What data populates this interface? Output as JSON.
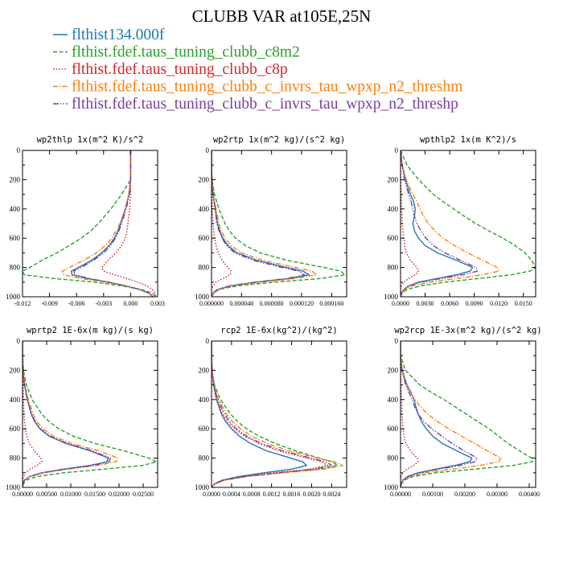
{
  "figure": {
    "title": "CLUBB VAR at105E,25N"
  },
  "legend": [
    {
      "name": "flthist134.000f",
      "color": "#1f77b4",
      "dash": "solid"
    },
    {
      "name": "flthist.fdef.taus_tuning_clubb_c8m2",
      "color": "#2ca02c",
      "dash": "dash"
    },
    {
      "name": "flthist.fdef.taus_tuning_clubb_c8p",
      "color": "#d62728",
      "dash": "dot"
    },
    {
      "name": "flthist.fdef.taus_tuning_clubb_c_invrs_tau_wpxp_n2_threshm",
      "color": "#ff7f0e",
      "dash": "dashdot"
    },
    {
      "name": "flthist.fdef.taus_tuning_clubb_c_invrs_tau_wpxp_n2_threshp",
      "color": "#7b3f9e",
      "dash": "dashdot2"
    }
  ],
  "chart_data": [
    {
      "type": "line",
      "title": "wp2thlp  1x(m^2 K)/s^2",
      "xlim": [
        -0.012,
        0.003
      ],
      "ylim": [
        1000,
        0
      ],
      "xticks": [
        -0.012,
        -0.009,
        -0.006,
        -0.003,
        0.0,
        0.003
      ],
      "xtick_labels": [
        "-0.012",
        "-0.009",
        "-0.006",
        "-0.003",
        "0.000",
        "0.003"
      ],
      "yticks": [
        0,
        200,
        400,
        600,
        800,
        1000
      ],
      "y": [
        0,
        100,
        200,
        300,
        400,
        500,
        550,
        600,
        650,
        700,
        750,
        800,
        825,
        850,
        875,
        900,
        925,
        950,
        975,
        1000
      ],
      "series": [
        {
          "values": [
            0.0,
            0.0,
            0.0,
            -0.0002,
            -0.0006,
            -0.0011,
            -0.0014,
            -0.0018,
            -0.0024,
            -0.0032,
            -0.0043,
            -0.0058,
            -0.0066,
            -0.0065,
            -0.0048,
            -0.0025,
            -0.0006,
            0.001,
            0.002,
            0.0025
          ]
        },
        {
          "values": [
            0.0,
            0.0,
            0.0,
            -0.001,
            -0.0022,
            -0.0036,
            -0.0044,
            -0.0055,
            -0.0068,
            -0.0082,
            -0.0098,
            -0.0112,
            -0.012,
            -0.0118,
            -0.0085,
            -0.004,
            -0.001,
            0.0012,
            0.0024,
            0.0028
          ]
        },
        {
          "values": [
            0.0,
            0.0,
            0.0,
            0.0,
            -0.0001,
            -0.0003,
            -0.0004,
            -0.0006,
            -0.001,
            -0.0016,
            -0.0025,
            -0.0032,
            -0.003,
            -0.0018,
            -0.0004,
            0.0008,
            0.0018,
            0.0024,
            0.0027,
            0.0028
          ]
        },
        {
          "values": [
            0.0,
            0.0,
            0.0,
            -0.0002,
            -0.0006,
            -0.0012,
            -0.0016,
            -0.0021,
            -0.0028,
            -0.0038,
            -0.0052,
            -0.0068,
            -0.0076,
            -0.0074,
            -0.0055,
            -0.0028,
            -0.0006,
            0.001,
            0.002,
            0.0025
          ]
        },
        {
          "values": [
            0.0,
            0.0,
            0.0,
            -0.0001,
            -0.0005,
            -0.001,
            -0.0013,
            -0.0017,
            -0.0022,
            -0.003,
            -0.0041,
            -0.0055,
            -0.0063,
            -0.0062,
            -0.0046,
            -0.0024,
            -0.0005,
            0.001,
            0.002,
            0.0025
          ]
        }
      ]
    },
    {
      "type": "line",
      "title": "wp2rtp  1x(m^2 kg)/(s^2 kg)",
      "xlim": [
        0.0,
        0.00018
      ],
      "ylim": [
        1000,
        0
      ],
      "xticks": [
        0.0,
        4e-05,
        8e-05,
        0.00012,
        0.00016
      ],
      "xtick_labels": [
        "0.000000",
        "0.000040",
        "0.000080",
        "0.000120",
        "0.000160"
      ],
      "yticks": [
        0,
        200,
        400,
        600,
        800,
        1000
      ],
      "y": [
        0,
        100,
        200,
        300,
        400,
        500,
        550,
        600,
        650,
        700,
        750,
        800,
        825,
        850,
        875,
        900,
        925,
        950,
        975,
        1000
      ],
      "series": [
        {
          "values": [
            0.0,
            0.0,
            5e-07,
            2e-06,
            5e-06,
            8e-06,
            1.1e-05,
            1.5e-05,
            2.2e-05,
            3.4e-05,
            6e-05,
            0.0001,
            0.000122,
            0.00013,
            0.000105,
            6e-05,
            2.5e-05,
            8e-06,
            2e-06,
            0.0
          ]
        },
        {
          "values": [
            0.0,
            0.0,
            8e-07,
            4e-06,
            1e-05,
            1.8e-05,
            2.4e-05,
            3.2e-05,
            4.5e-05,
            6.5e-05,
            0.0001,
            0.00015,
            0.000172,
            0.000178,
            0.000145,
            8.5e-05,
            3.5e-05,
            1e-05,
            3e-06,
            0.0
          ]
        },
        {
          "values": [
            0.0,
            0.0,
            0.0,
            5e-07,
            1e-06,
            2e-06,
            3e-06,
            4e-06,
            6e-06,
            9e-06,
            1.4e-05,
            2.2e-05,
            2.6e-05,
            2.5e-05,
            1.5e-05,
            6e-06,
            2e-06,
            0.0,
            0.0,
            0.0
          ]
        },
        {
          "values": [
            0.0,
            0.0,
            6e-07,
            2e-06,
            6e-06,
            1e-05,
            1.3e-05,
            1.8e-05,
            2.6e-05,
            4e-05,
            6.8e-05,
            0.000112,
            0.000134,
            0.00014,
            0.000112,
            6.5e-05,
            2.8e-05,
            9e-06,
            2e-06,
            0.0
          ]
        },
        {
          "values": [
            0.0,
            0.0,
            4e-07,
            2e-06,
            5e-06,
            7e-06,
            1e-05,
            1.4e-05,
            2e-05,
            3.1e-05,
            5.5e-05,
            9.4e-05,
            0.000116,
            0.000124,
            0.0001,
            5.8e-05,
            2.4e-05,
            8e-06,
            2e-06,
            0.0
          ]
        }
      ]
    },
    {
      "type": "line",
      "title": "wpthlp2  1x(m K^2)/s",
      "xlim": [
        0.0,
        0.0165
      ],
      "ylim": [
        1000,
        0
      ],
      "xticks": [
        0.0,
        0.003,
        0.006,
        0.009,
        0.012,
        0.015
      ],
      "xtick_labels": [
        "0.0000",
        "0.0030",
        "0.0060",
        "0.0090",
        "0.0120",
        "0.0150"
      ],
      "yticks": [
        0,
        200,
        400,
        600,
        800,
        1000
      ],
      "y": [
        0,
        100,
        200,
        300,
        350,
        400,
        450,
        500,
        550,
        600,
        650,
        700,
        750,
        800,
        825,
        850,
        875,
        900,
        925,
        950,
        975,
        1000
      ],
      "series": [
        {
          "values": [
            0.0,
            0.0002,
            0.0006,
            0.0012,
            0.0016,
            0.0018,
            0.0017,
            0.0015,
            0.0017,
            0.0022,
            0.003,
            0.0045,
            0.0068,
            0.0088,
            0.0085,
            0.0068,
            0.0045,
            0.0022,
            0.001,
            0.0004,
            0.0001,
            0.0
          ]
        },
        {
          "values": [
            0.0,
            0.0008,
            0.0022,
            0.004,
            0.0052,
            0.0065,
            0.0078,
            0.0092,
            0.0108,
            0.0125,
            0.014,
            0.0152,
            0.016,
            0.0165,
            0.0158,
            0.0135,
            0.0095,
            0.0055,
            0.0025,
            0.0008,
            0.0002,
            0.0
          ]
        },
        {
          "values": [
            0.0,
            0.0,
            0.0,
            0.0001,
            0.0001,
            0.0001,
            0.0002,
            0.0002,
            0.0003,
            0.0004,
            0.0005,
            0.0007,
            0.0012,
            0.002,
            0.0022,
            0.0018,
            0.001,
            0.0004,
            0.0001,
            0.0,
            0.0,
            0.0
          ]
        },
        {
          "values": [
            0.0,
            0.0002,
            0.0007,
            0.0015,
            0.002,
            0.0024,
            0.0028,
            0.0034,
            0.0042,
            0.0052,
            0.0066,
            0.0082,
            0.01,
            0.0118,
            0.012,
            0.01,
            0.0068,
            0.0036,
            0.0015,
            0.0005,
            0.0001,
            0.0
          ]
        },
        {
          "values": [
            0.0,
            0.0002,
            0.0005,
            0.001,
            0.0013,
            0.0015,
            0.0017,
            0.002,
            0.0025,
            0.0031,
            0.004,
            0.0054,
            0.0073,
            0.0092,
            0.0094,
            0.0076,
            0.005,
            0.0025,
            0.001,
            0.0004,
            0.0001,
            0.0
          ]
        }
      ]
    },
    {
      "type": "line",
      "title": "wprtp2  1E-6x(m kg)/(s kg)",
      "xlim": [
        0.0,
        0.028
      ],
      "ylim": [
        1000,
        0
      ],
      "xticks": [
        0.0,
        0.005,
        0.01,
        0.015,
        0.02,
        0.025
      ],
      "xtick_labels": [
        "0.00000",
        "0.00500",
        "0.01000",
        "0.01500",
        "0.02000",
        "0.02500"
      ],
      "yticks": [
        0,
        200,
        400,
        600,
        800,
        1000
      ],
      "y": [
        0,
        100,
        200,
        300,
        400,
        500,
        550,
        600,
        650,
        700,
        750,
        800,
        825,
        850,
        875,
        900,
        925,
        950,
        975,
        1000
      ],
      "series": [
        {
          "values": [
            0.0,
            0.0,
            0.0001,
            0.0004,
            0.001,
            0.0018,
            0.0025,
            0.0036,
            0.0055,
            0.009,
            0.014,
            0.0178,
            0.0175,
            0.014,
            0.0085,
            0.004,
            0.0015,
            0.0004,
            0.0001,
            0.0
          ]
        },
        {
          "values": [
            0.0,
            0.0,
            0.0002,
            0.0008,
            0.002,
            0.004,
            0.0055,
            0.0075,
            0.0105,
            0.015,
            0.021,
            0.0262,
            0.0278,
            0.0248,
            0.017,
            0.0085,
            0.003,
            0.0008,
            0.0002,
            0.0
          ]
        },
        {
          "values": [
            0.0,
            0.0,
            0.0,
            0.0001,
            0.0002,
            0.0003,
            0.0004,
            0.0006,
            0.0009,
            0.0014,
            0.0024,
            0.0038,
            0.004,
            0.003,
            0.0016,
            0.0006,
            0.0002,
            0.0,
            0.0,
            0.0
          ]
        },
        {
          "values": [
            0.0,
            0.0,
            0.0001,
            0.0005,
            0.0012,
            0.0022,
            0.003,
            0.0042,
            0.0064,
            0.0102,
            0.0158,
            0.0198,
            0.0194,
            0.0155,
            0.0094,
            0.0044,
            0.0016,
            0.0004,
            0.0001,
            0.0
          ]
        },
        {
          "values": [
            0.0,
            0.0,
            0.0001,
            0.0004,
            0.001,
            0.0019,
            0.0026,
            0.0037,
            0.0057,
            0.0093,
            0.0145,
            0.0182,
            0.018,
            0.0145,
            0.0088,
            0.0041,
            0.0015,
            0.0004,
            0.0001,
            0.0
          ]
        }
      ]
    },
    {
      "type": "line",
      "title": "rcp2  1E-6x(kg^2)/(kg^2)",
      "xlim": [
        0.0,
        0.0027
      ],
      "ylim": [
        1000,
        0
      ],
      "xticks": [
        0.0,
        0.0004,
        0.0008,
        0.0012,
        0.0016,
        0.002,
        0.0024
      ],
      "xtick_labels": [
        "0.0000",
        "0.0004",
        "0.0008",
        "0.0012",
        "0.0016",
        "0.0020",
        "0.0024"
      ],
      "yticks": [
        0,
        200,
        400,
        600,
        800,
        1000
      ],
      "y": [
        0,
        100,
        200,
        300,
        400,
        500,
        550,
        600,
        650,
        700,
        750,
        800,
        825,
        850,
        875,
        900,
        925,
        950,
        975,
        1000
      ],
      "series": [
        {
          "values": [
            0.0,
            0.0,
            1e-05,
            4e-05,
            0.0001,
            0.0002,
            0.00028,
            0.0004,
            0.00056,
            0.00078,
            0.0011,
            0.00158,
            0.00182,
            0.0019,
            0.0016,
            0.00105,
            0.00055,
            0.00022,
            6e-05,
            0.0
          ]
        },
        {
          "values": [
            0.0,
            0.0,
            1e-05,
            6e-05,
            0.00018,
            0.00038,
            0.00052,
            0.0007,
            0.00095,
            0.00128,
            0.00168,
            0.00215,
            0.0024,
            0.00252,
            0.00215,
            0.0014,
            0.0007,
            0.00026,
            7e-05,
            0.0
          ]
        },
        {
          "values": [
            0.0,
            0.0,
            1e-05,
            4e-05,
            0.0001,
            0.00022,
            0.00032,
            0.00046,
            0.00066,
            0.00094,
            0.00134,
            0.0019,
            0.0022,
            0.00232,
            0.00195,
            0.00125,
            0.00062,
            0.00024,
            6e-05,
            0.0
          ]
        },
        {
          "values": [
            0.0,
            0.0,
            1e-05,
            5e-05,
            0.00014,
            0.0003,
            0.00042,
            0.00058,
            0.0008,
            0.00112,
            0.00155,
            0.00212,
            0.00245,
            0.00262,
            0.00225,
            0.00145,
            0.00072,
            0.00027,
            7e-05,
            0.0
          ]
        },
        {
          "values": [
            0.0,
            0.0,
            1e-05,
            4e-05,
            0.00012,
            0.00026,
            0.00036,
            0.0005,
            0.0007,
            0.001,
            0.00142,
            0.00198,
            0.00228,
            0.0024,
            0.00205,
            0.00132,
            0.00066,
            0.00025,
            6e-05,
            0.0
          ]
        }
      ]
    },
    {
      "type": "line",
      "title": "wp2rcp  1E-3x(m^2 kg)/(s^2 kg)",
      "xlim": [
        0.0,
        0.0042
      ],
      "ylim": [
        1000,
        0
      ],
      "xticks": [
        0.0,
        0.001,
        0.002,
        0.003,
        0.004
      ],
      "xtick_labels": [
        "0.00000",
        "0.00100",
        "0.00200",
        "0.00300",
        "0.00400"
      ],
      "yticks": [
        0,
        200,
        400,
        600,
        800,
        1000
      ],
      "y": [
        0,
        100,
        200,
        300,
        350,
        400,
        450,
        500,
        550,
        600,
        650,
        700,
        750,
        800,
        825,
        850,
        875,
        900,
        925,
        950,
        975,
        1000
      ],
      "series": [
        {
          "values": [
            0.0,
            0.0,
            5e-05,
            0.0002,
            0.00032,
            0.00042,
            0.00048,
            0.00055,
            0.00065,
            0.0008,
            0.001,
            0.0013,
            0.00175,
            0.00222,
            0.00215,
            0.0017,
            0.0011,
            0.00055,
            0.00022,
            7e-05,
            2e-05,
            0.0
          ]
        },
        {
          "values": [
            0.0,
            0.0,
            0.00015,
            0.0006,
            0.00095,
            0.00135,
            0.0017,
            0.00205,
            0.0024,
            0.00275,
            0.00305,
            0.00335,
            0.0037,
            0.00408,
            0.0041,
            0.0035,
            0.0023,
            0.0011,
            0.0004,
            0.00012,
            3e-05,
            0.0
          ]
        },
        {
          "values": [
            0.0,
            0.0,
            0.0,
            1e-05,
            2e-05,
            3e-05,
            4e-05,
            5e-05,
            6e-05,
            8e-05,
            0.00011,
            0.00016,
            0.0003,
            0.00052,
            0.00055,
            0.0004,
            0.0002,
            8e-05,
            2e-05,
            0.0,
            0.0,
            0.0
          ]
        },
        {
          "values": [
            0.0,
            0.0,
            4e-05,
            0.00018,
            0.0003,
            0.00045,
            0.00062,
            0.00085,
            0.00115,
            0.0015,
            0.0019,
            0.0023,
            0.0027,
            0.00312,
            0.00305,
            0.00248,
            0.0016,
            0.0008,
            0.0003,
            9e-05,
            2e-05,
            0.0
          ]
        },
        {
          "values": [
            0.0,
            0.0,
            4e-05,
            0.00016,
            0.00026,
            0.00036,
            0.00044,
            0.00055,
            0.00072,
            0.00098,
            0.00128,
            0.0016,
            0.00198,
            0.00238,
            0.00232,
            0.00185,
            0.0012,
            0.0006,
            0.00023,
            7e-05,
            2e-05,
            0.0
          ]
        }
      ]
    }
  ]
}
